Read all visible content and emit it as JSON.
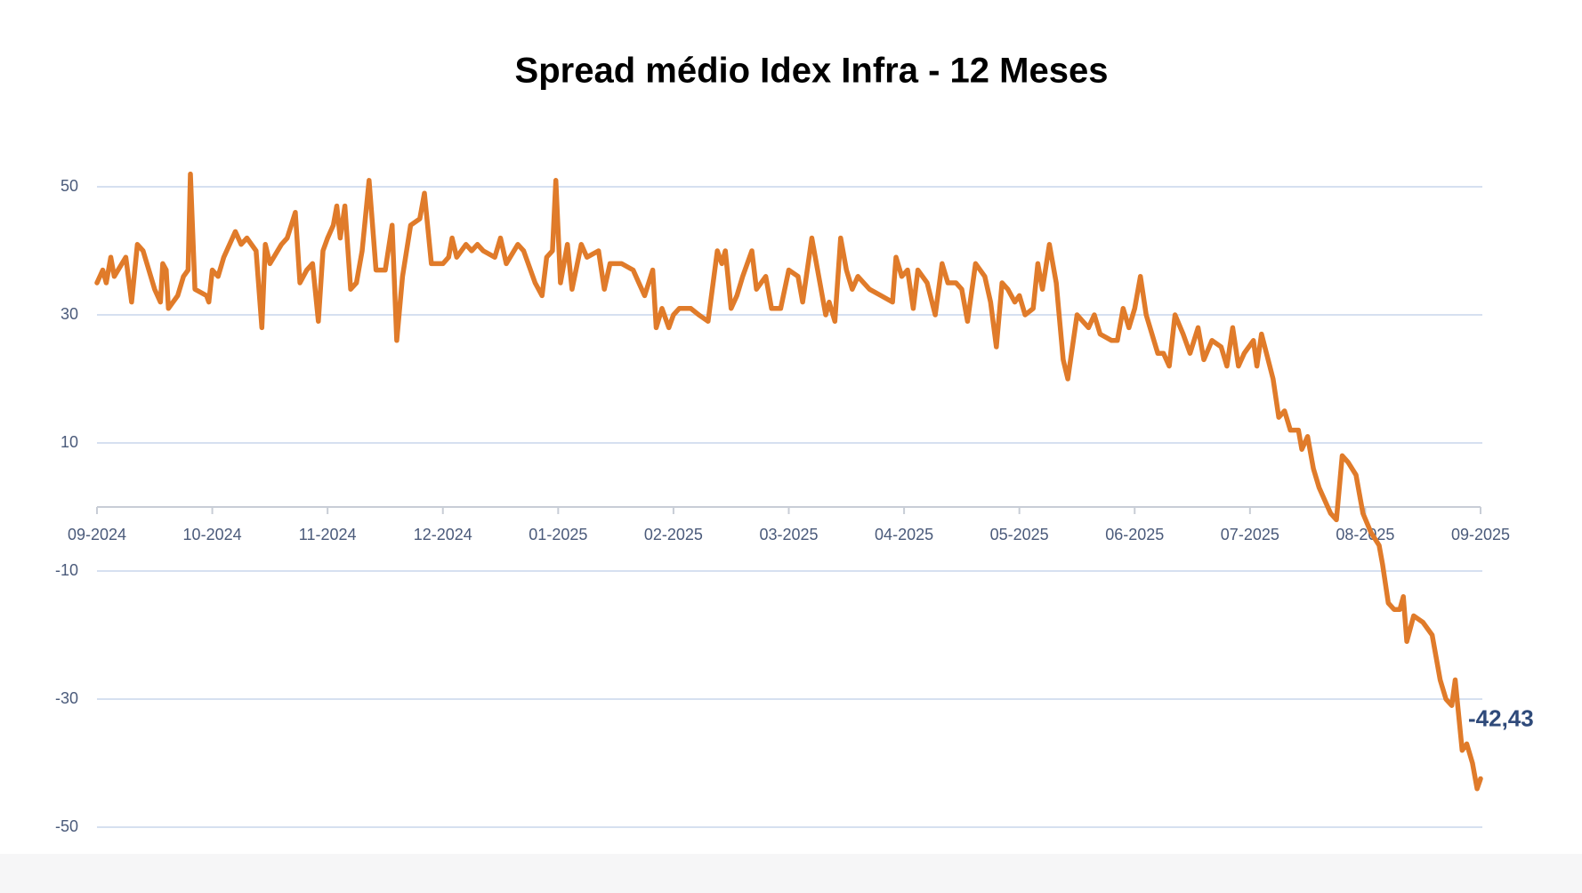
{
  "chart_data": {
    "type": "line",
    "title": "Spread médio Idex Infra - 12 Meses",
    "x": [
      0,
      0.05,
      0.08,
      0.12,
      0.15,
      0.25,
      0.3,
      0.35,
      0.4,
      0.5,
      0.55,
      0.57,
      0.6,
      0.62,
      0.7,
      0.75,
      0.79,
      0.81,
      0.85,
      0.95,
      0.97,
      1.0,
      1.05,
      1.1,
      1.2,
      1.25,
      1.3,
      1.38,
      1.43,
      1.46,
      1.5,
      1.6,
      1.65,
      1.72,
      1.76,
      1.82,
      1.87,
      1.92,
      1.96,
      2.0,
      2.05,
      2.08,
      2.11,
      2.15,
      2.2,
      2.25,
      2.3,
      2.36,
      2.42,
      2.5,
      2.56,
      2.6,
      2.65,
      2.72,
      2.8,
      2.84,
      2.9,
      3.0,
      3.05,
      3.08,
      3.12,
      3.2,
      3.25,
      3.3,
      3.35,
      3.45,
      3.5,
      3.55,
      3.65,
      3.7,
      3.8,
      3.86,
      3.9,
      3.95,
      3.98,
      4.02,
      4.08,
      4.12,
      4.2,
      4.25,
      4.35,
      4.4,
      4.45,
      4.55,
      4.65,
      4.7,
      4.75,
      4.82,
      4.85,
      4.9,
      4.96,
      5.0,
      5.05,
      5.15,
      5.22,
      5.3,
      5.38,
      5.42,
      5.45,
      5.5,
      5.55,
      5.6,
      5.68,
      5.72,
      5.8,
      5.85,
      5.93,
      6.0,
      6.08,
      6.12,
      6.2,
      6.27,
      6.32,
      6.35,
      6.4,
      6.45,
      6.5,
      6.55,
      6.6,
      6.7,
      6.8,
      6.9,
      6.93,
      6.98,
      7.03,
      7.08,
      7.12,
      7.2,
      7.27,
      7.33,
      7.38,
      7.45,
      7.5,
      7.55,
      7.62,
      7.7,
      7.75,
      7.8,
      7.85,
      7.9,
      7.96,
      8.0,
      8.05,
      8.12,
      8.16,
      8.2,
      8.26,
      8.32,
      8.38,
      8.42,
      8.5,
      8.55,
      8.6,
      8.65,
      8.7,
      8.8,
      8.85,
      8.9,
      8.95,
      9.0,
      9.05,
      9.1,
      9.15,
      9.2,
      9.25,
      9.3,
      9.35,
      9.42,
      9.48,
      9.55,
      9.6,
      9.67,
      9.75,
      9.8,
      9.85,
      9.9,
      9.95,
      10.03,
      10.06,
      10.1,
      10.2,
      10.25,
      10.3,
      10.35,
      10.42,
      10.45,
      10.5,
      10.55,
      10.6,
      10.7,
      10.75,
      10.8,
      10.85,
      10.92,
      10.98,
      11.05,
      11.12,
      11.15,
      11.2,
      11.25,
      11.3,
      11.33,
      11.36,
      11.42,
      11.5,
      11.58,
      11.65,
      11.7,
      11.75,
      11.78,
      11.84,
      11.88,
      11.93,
      11.97,
      12.0
    ],
    "series": [
      {
        "color": "#e07b2a",
        "values": [
          35,
          37,
          35,
          39,
          36,
          39,
          32,
          41,
          40,
          34,
          32,
          38,
          37,
          31,
          33,
          36,
          37,
          52,
          34,
          33,
          32,
          37,
          36,
          39,
          43,
          41,
          42,
          40,
          28,
          41,
          38,
          41,
          42,
          46,
          35,
          37,
          38,
          29,
          40,
          42,
          44,
          47,
          42,
          47,
          34,
          35,
          40,
          51,
          37,
          37,
          44,
          26,
          36,
          44,
          45,
          49,
          38,
          38,
          39,
          42,
          39,
          41,
          40,
          41,
          40,
          39,
          42,
          38,
          41,
          40,
          35,
          33,
          39,
          40,
          51,
          35,
          41,
          34,
          41,
          39,
          40,
          34,
          38,
          38,
          37,
          35,
          33,
          37,
          28,
          31,
          28,
          30,
          31,
          31,
          30,
          29,
          40,
          38,
          40,
          31,
          33,
          36,
          40,
          34,
          36,
          31,
          31,
          37,
          36,
          32,
          42,
          35,
          30,
          32,
          29,
          42,
          37,
          34,
          36,
          34,
          33,
          32,
          39,
          36,
          37,
          31,
          37,
          35,
          30,
          38,
          35,
          35,
          34,
          29,
          38,
          36,
          32,
          25,
          35,
          34,
          32,
          33,
          30,
          31,
          38,
          34,
          41,
          35,
          23,
          20,
          30,
          29,
          28,
          30,
          27,
          26,
          26,
          31,
          28,
          31,
          36,
          30,
          27,
          24,
          24,
          22,
          30,
          27,
          24,
          28,
          23,
          26,
          25,
          22,
          28,
          22,
          24,
          26,
          22,
          27,
          20,
          14,
          15,
          12,
          12,
          9,
          11,
          6,
          3,
          -1,
          -2,
          8,
          7,
          5,
          -1,
          -4,
          -6,
          -9,
          -15,
          -16,
          -16,
          -14,
          -21,
          -17,
          -18,
          -20,
          -27,
          -30,
          -31,
          -27,
          -38,
          -37,
          -40,
          -44,
          -42.43
        ]
      }
    ],
    "end_label": "-42,43",
    "xlim": [
      0,
      12
    ],
    "xticks": [
      {
        "value": 0,
        "label": "09-2024"
      },
      {
        "value": 1,
        "label": "10-2024"
      },
      {
        "value": 2,
        "label": "11-2024"
      },
      {
        "value": 3,
        "label": "12-2024"
      },
      {
        "value": 4,
        "label": "01-2025"
      },
      {
        "value": 5,
        "label": "02-2025"
      },
      {
        "value": 6,
        "label": "03-2025"
      },
      {
        "value": 7,
        "label": "04-2025"
      },
      {
        "value": 8,
        "label": "05-2025"
      },
      {
        "value": 9,
        "label": "06-2025"
      },
      {
        "value": 10,
        "label": "07-2025"
      },
      {
        "value": 11,
        "label": "08-2025"
      },
      {
        "value": 12,
        "label": "09-2025"
      }
    ],
    "ylim": [
      -50,
      50
    ],
    "yticks": [
      50,
      30,
      10,
      -10,
      -30,
      -50
    ],
    "grid": true
  }
}
